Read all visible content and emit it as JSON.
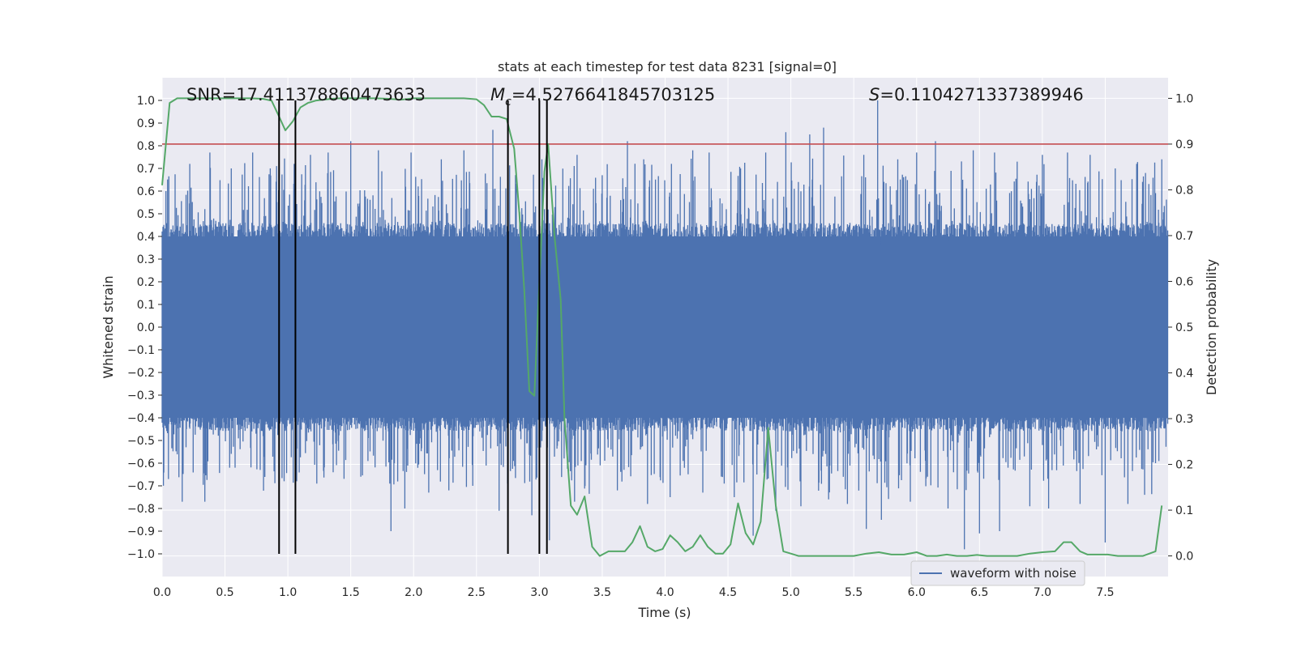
{
  "chart_data": {
    "type": "line",
    "title": "stats at each timestep for test data 8231 [signal=0]",
    "xlabel": "Time (s)",
    "ylabel": "Whitened strain",
    "ylabel_right": "Detection probability",
    "xlim": [
      0.0,
      8.0
    ],
    "ylim": [
      -1.1,
      1.1
    ],
    "ylim_right": [
      -0.045,
      1.045
    ],
    "x_ticks": [
      "0.0",
      "0.5",
      "1.0",
      "1.5",
      "2.0",
      "2.5",
      "3.0",
      "3.5",
      "4.0",
      "4.5",
      "5.0",
      "5.5",
      "6.0",
      "6.5",
      "7.0",
      "7.5"
    ],
    "y_ticks": [
      "1.0",
      "0.9",
      "0.8",
      "0.7",
      "0.6",
      "0.5",
      "0.4",
      "0.3",
      "0.2",
      "0.1",
      "0.0",
      "−0.1",
      "−0.2",
      "−0.3",
      "−0.4",
      "−0.5",
      "−0.6",
      "−0.7",
      "−0.8",
      "−0.9",
      "−1.0"
    ],
    "y_ticks_right": [
      "1.0",
      "0.9",
      "0.8",
      "0.7",
      "0.6",
      "0.5",
      "0.4",
      "0.3",
      "0.2",
      "0.1",
      "0.0"
    ],
    "annotations": {
      "snr": "SNR=17.411378860473633",
      "mc_symbol": "M",
      "mc_sub": "c",
      "mc_value": "=4.5276641845703125",
      "s_symbol": "S",
      "s_value": "=0.1104271337389946"
    },
    "legend": {
      "label": "waveform with noise",
      "placement": "lower-right"
    },
    "threshold": {
      "value": 0.9,
      "axis": "right",
      "color": "#c44e52"
    },
    "vlines": [
      0.93,
      1.06,
      2.75,
      3.0,
      3.06
    ],
    "vline_range": [
      -1.0,
      1.0
    ],
    "waveform": {
      "name": "waveform with noise",
      "color": "#4c72b0",
      "duration": 8.0,
      "typical_envelope": 0.4,
      "top_peaks": [
        [
          0.03,
          0.6
        ],
        [
          0.22,
          0.72
        ],
        [
          0.38,
          0.77
        ],
        [
          0.55,
          0.7
        ],
        [
          0.72,
          0.77
        ],
        [
          0.86,
          0.7
        ],
        [
          1.05,
          0.72
        ],
        [
          1.18,
          0.76
        ],
        [
          1.32,
          0.77
        ],
        [
          1.5,
          0.82
        ],
        [
          1.72,
          0.78
        ],
        [
          1.98,
          0.77
        ],
        [
          2.22,
          0.74
        ],
        [
          2.4,
          0.78
        ],
        [
          2.63,
          0.87
        ],
        [
          2.75,
          0.93
        ],
        [
          3.02,
          0.74
        ],
        [
          3.3,
          0.76
        ],
        [
          3.5,
          0.67
        ],
        [
          3.7,
          0.82
        ],
        [
          3.83,
          0.74
        ],
        [
          4.05,
          0.72
        ],
        [
          4.22,
          0.78
        ],
        [
          4.35,
          0.77
        ],
        [
          4.6,
          0.7
        ],
        [
          4.8,
          0.77
        ],
        [
          4.96,
          0.86
        ],
        [
          5.15,
          0.85
        ],
        [
          5.26,
          0.88
        ],
        [
          5.58,
          0.76
        ],
        [
          5.69,
          1.0
        ],
        [
          5.85,
          0.74
        ],
        [
          6.0,
          0.77
        ],
        [
          6.15,
          0.82
        ],
        [
          6.45,
          0.78
        ],
        [
          6.62,
          0.77
        ],
        [
          6.8,
          0.73
        ],
        [
          7.0,
          0.76
        ],
        [
          7.2,
          0.77
        ],
        [
          7.38,
          0.76
        ],
        [
          7.58,
          0.7
        ],
        [
          7.75,
          0.72
        ],
        [
          7.95,
          0.74
        ]
      ],
      "bottom_peaks": [
        [
          0.05,
          -0.67
        ],
        [
          0.16,
          -0.77
        ],
        [
          0.34,
          -0.77
        ],
        [
          0.58,
          -0.62
        ],
        [
          0.78,
          -0.63
        ],
        [
          0.97,
          -0.68
        ],
        [
          1.07,
          -0.68
        ],
        [
          1.23,
          -0.69
        ],
        [
          1.36,
          -0.64
        ],
        [
          1.58,
          -0.66
        ],
        [
          1.82,
          -0.9
        ],
        [
          1.93,
          -0.8
        ],
        [
          2.12,
          -0.73
        ],
        [
          2.28,
          -0.72
        ],
        [
          2.47,
          -0.7
        ],
        [
          2.68,
          -0.81
        ],
        [
          2.75,
          -0.84
        ],
        [
          2.94,
          -0.83
        ],
        [
          3.08,
          -0.94
        ],
        [
          3.28,
          -0.77
        ],
        [
          3.62,
          -0.72
        ],
        [
          3.86,
          -0.78
        ],
        [
          4.04,
          -0.75
        ],
        [
          4.3,
          -0.73
        ],
        [
          4.55,
          -0.75
        ],
        [
          4.7,
          -0.92
        ],
        [
          4.88,
          -0.81
        ],
        [
          5.08,
          -0.79
        ],
        [
          5.3,
          -0.76
        ],
        [
          5.45,
          -0.78
        ],
        [
          5.6,
          -0.89
        ],
        [
          5.72,
          -0.85
        ],
        [
          5.95,
          -0.77
        ],
        [
          6.25,
          -0.8
        ],
        [
          6.38,
          -0.98
        ],
        [
          6.5,
          -0.91
        ],
        [
          6.66,
          -0.9
        ],
        [
          6.9,
          -0.79
        ],
        [
          7.05,
          -0.8
        ],
        [
          7.3,
          -0.78
        ],
        [
          7.5,
          -0.95
        ],
        [
          7.68,
          -0.78
        ],
        [
          7.9,
          -0.6
        ]
      ]
    },
    "detection_probability": {
      "name": "detection probability",
      "color": "#55a868",
      "x": [
        0.0,
        0.06,
        0.12,
        0.2,
        0.3,
        0.4,
        0.5,
        0.6,
        0.7,
        0.8,
        0.87,
        0.93,
        0.98,
        1.04,
        1.1,
        1.16,
        1.22,
        1.28,
        1.35,
        1.42,
        1.5,
        1.6,
        1.7,
        1.8,
        1.9,
        2.0,
        2.1,
        2.2,
        2.3,
        2.4,
        2.5,
        2.56,
        2.62,
        2.68,
        2.74,
        2.8,
        2.84,
        2.88,
        2.92,
        2.96,
        3.0,
        3.04,
        3.07,
        3.12,
        3.17,
        3.2,
        3.25,
        3.3,
        3.36,
        3.42,
        3.48,
        3.55,
        3.62,
        3.68,
        3.74,
        3.8,
        3.86,
        3.92,
        3.98,
        4.04,
        4.1,
        4.16,
        4.22,
        4.28,
        4.34,
        4.4,
        4.46,
        4.52,
        4.58,
        4.64,
        4.7,
        4.76,
        4.82,
        4.88,
        4.94,
        5.0,
        5.06,
        5.12,
        5.2,
        5.3,
        5.4,
        5.5,
        5.6,
        5.7,
        5.8,
        5.9,
        6.0,
        6.08,
        6.16,
        6.24,
        6.32,
        6.4,
        6.48,
        6.56,
        6.64,
        6.72,
        6.8,
        6.9,
        7.0,
        7.1,
        7.17,
        7.23,
        7.3,
        7.36,
        7.44,
        7.52,
        7.6,
        7.7,
        7.8,
        7.9,
        7.95
      ],
      "y": [
        0.81,
        0.99,
        1.0,
        1.0,
        1.0,
        1.0,
        1.0,
        1.0,
        1.0,
        0.999,
        0.995,
        0.96,
        0.93,
        0.95,
        0.98,
        0.99,
        0.995,
        0.997,
        0.999,
        1.0,
        1.0,
        1.0,
        1.0,
        0.999,
        0.997,
        1.0,
        1.0,
        1.0,
        1.0,
        1.0,
        0.998,
        0.985,
        0.96,
        0.96,
        0.955,
        0.89,
        0.75,
        0.58,
        0.36,
        0.35,
        0.6,
        0.84,
        0.9,
        0.7,
        0.56,
        0.3,
        0.11,
        0.09,
        0.13,
        0.02,
        0.0,
        0.01,
        0.01,
        0.01,
        0.03,
        0.065,
        0.02,
        0.01,
        0.015,
        0.045,
        0.03,
        0.01,
        0.02,
        0.045,
        0.02,
        0.005,
        0.005,
        0.025,
        0.115,
        0.05,
        0.025,
        0.075,
        0.28,
        0.11,
        0.01,
        0.005,
        0.0,
        0.0,
        0.0,
        0.0,
        0.0,
        0.0,
        0.005,
        0.008,
        0.003,
        0.003,
        0.008,
        0.0,
        0.0,
        0.003,
        0.0,
        0.0,
        0.002,
        0.0,
        0.0,
        0.0,
        0.0,
        0.005,
        0.008,
        0.01,
        0.03,
        0.03,
        0.01,
        0.003,
        0.003,
        0.003,
        0.0,
        0.0,
        0.0,
        0.01,
        0.11
      ]
    }
  }
}
